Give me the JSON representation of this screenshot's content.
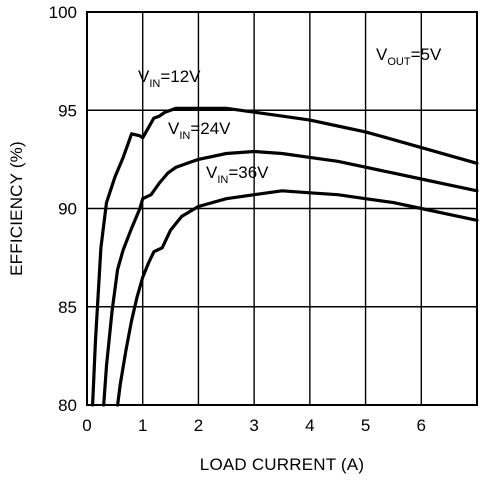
{
  "chart_data": {
    "type": "line",
    "xlabel": "LOAD CURRENT (A)",
    "ylabel": "EFFICIENCY (%)",
    "xlim": [
      0,
      7
    ],
    "ylim": [
      80,
      100
    ],
    "xticks": [
      0,
      1,
      2,
      3,
      4,
      5,
      6
    ],
    "yticks": [
      80,
      85,
      90,
      95,
      100
    ],
    "grid": true,
    "annotations": [
      {
        "main": "V",
        "sub": "OUT",
        "suffix": "=5V"
      }
    ],
    "series": [
      {
        "name_parts": {
          "main": "V",
          "sub": "IN",
          "suffix": "=12V"
        },
        "x": [
          0.1,
          0.15,
          0.25,
          0.35,
          0.5,
          0.65,
          0.8,
          0.95,
          1.0,
          1.1,
          1.2,
          1.3,
          1.4,
          1.6,
          1.8,
          2.0,
          2.5,
          3.0,
          3.5,
          4.0,
          4.5,
          5.0,
          5.5,
          6.0,
          6.5,
          7.0
        ],
        "y": [
          80.0,
          83.2,
          88.0,
          90.3,
          91.6,
          92.6,
          93.8,
          93.7,
          93.6,
          94.1,
          94.6,
          94.7,
          94.9,
          95.1,
          95.1,
          95.1,
          95.1,
          94.9,
          94.7,
          94.5,
          94.2,
          93.9,
          93.5,
          93.1,
          92.7,
          92.3
        ]
      },
      {
        "name_parts": {
          "main": "V",
          "sub": "IN",
          "suffix": "=24V"
        },
        "x": [
          0.3,
          0.35,
          0.45,
          0.55,
          0.65,
          0.8,
          0.95,
          1.0,
          1.15,
          1.3,
          1.45,
          1.6,
          1.8,
          2.0,
          2.5,
          3.0,
          3.5,
          4.0,
          4.5,
          5.0,
          5.5,
          6.0,
          6.5,
          7.0
        ],
        "y": [
          80.0,
          82.0,
          84.8,
          86.9,
          87.9,
          89.0,
          90.0,
          90.5,
          90.7,
          91.3,
          91.8,
          92.1,
          92.3,
          92.5,
          92.8,
          92.9,
          92.8,
          92.6,
          92.4,
          92.1,
          91.8,
          91.5,
          91.2,
          90.9
        ]
      },
      {
        "name_parts": {
          "main": "V",
          "sub": "IN",
          "suffix": "=36V"
        },
        "x": [
          0.55,
          0.6,
          0.7,
          0.8,
          0.9,
          1.0,
          1.1,
          1.2,
          1.35,
          1.5,
          1.7,
          2.0,
          2.5,
          3.0,
          3.5,
          4.0,
          4.5,
          5.0,
          5.5,
          6.0,
          6.5,
          7.0
        ],
        "y": [
          80.0,
          81.1,
          82.8,
          84.3,
          85.5,
          86.5,
          87.2,
          87.8,
          88.0,
          88.9,
          89.6,
          90.1,
          90.5,
          90.7,
          90.9,
          90.8,
          90.7,
          90.5,
          90.3,
          90.0,
          89.7,
          89.4
        ]
      }
    ]
  }
}
